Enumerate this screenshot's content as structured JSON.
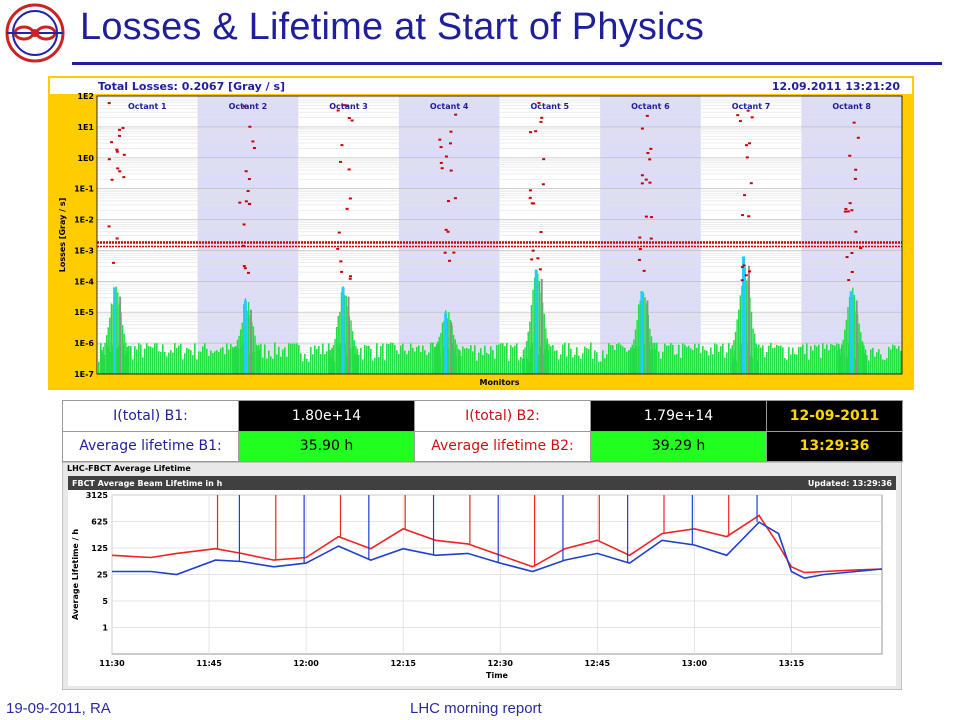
{
  "slide": {
    "title": "Losses & Lifetime at Start of Physics",
    "footer_left": "19-09-2011, RA",
    "footer_center": "LHC morning report"
  },
  "colors": {
    "title_blue": "#1f1f9c",
    "frame_yellow": "#ffcc00",
    "loss_marker": "#cc0000",
    "loss_bar": "#22dd44",
    "loss_cyan": "#22ccff",
    "loss_gray": "#909090",
    "beam1": "#1f3fcc",
    "beam2": "#ee2222",
    "value_green": "#20ff20"
  },
  "icons": {
    "logo": "lhc-ring-logo-icon"
  },
  "beam_table": {
    "row1": {
      "label_b1": "I(total) B1:",
      "value_b1": "1.80e+14",
      "label_b2": "I(total) B2:",
      "value_b2": "1.79e+14",
      "date": "12-09-2011"
    },
    "row2": {
      "label_b1": "Average lifetime B1:",
      "value_b1": "35.90 h",
      "label_b2": "Average lifetime B2:",
      "value_b2": "39.29 h",
      "time": "13:29:36"
    }
  },
  "chart_data": [
    {
      "type": "bar",
      "title": "Total Losses: 0.2067 [Gray / s]",
      "timestamp": "12.09.2011 13:21:20",
      "xlabel": "Monitors",
      "ylabel": "Losses [Gray / s]",
      "yscale": "log",
      "ylim": [
        1e-07,
        100
      ],
      "yticks": [
        "1E-7",
        "1E-6",
        "1E-5",
        "1E-4",
        "1E-3",
        "1E-2",
        "1E-1",
        "1E0",
        "1E1",
        "1E2"
      ],
      "categories": [
        "Octant 1",
        "Octant 2",
        "Octant 3",
        "Octant 4",
        "Octant 5",
        "Octant 6",
        "Octant 7",
        "Octant 8"
      ],
      "threshold_level": 0.0018,
      "peak_losses": [
        8e-05,
        3e-05,
        8e-05,
        1.2e-05,
        0.0003,
        6e-05,
        0.0008,
        6e-05
      ],
      "background_level": 5e-07,
      "grid": true
    },
    {
      "type": "line",
      "panel_label": "LHC-FBCT Average Lifetime",
      "title": "FBCT Average Beam Lifetime in h",
      "updated": "Updated: 13:29:36",
      "xlabel": "Time",
      "ylabel": "Average Lifetime / h",
      "yscale": "log",
      "ylim": [
        0.2,
        3125
      ],
      "yticks": [
        "1",
        "5",
        "25",
        "125",
        "625",
        "3125"
      ],
      "xlim": [
        "11:30",
        "13:29"
      ],
      "xticks": [
        "11:30",
        "11:45",
        "12:00",
        "12:15",
        "12:30",
        "12:45",
        "13:00",
        "13:15"
      ],
      "grid": true,
      "series": [
        {
          "name": "B1",
          "color": "#1f3fcc",
          "x": [
            "11:30",
            "11:36",
            "11:40",
            "11:46",
            "11:50",
            "11:55",
            "12:00",
            "12:05",
            "12:10",
            "12:15",
            "12:20",
            "12:25",
            "12:30",
            "12:35",
            "12:40",
            "12:45",
            "12:50",
            "12:55",
            "13:00",
            "13:05",
            "13:10",
            "13:13",
            "13:15",
            "13:17",
            "13:20",
            "13:25",
            "13:29"
          ],
          "values": [
            30,
            30,
            25,
            60,
            55,
            40,
            50,
            140,
            60,
            120,
            80,
            90,
            50,
            30,
            60,
            90,
            50,
            200,
            150,
            80,
            600,
            300,
            30,
            20,
            25,
            30,
            35
          ]
        },
        {
          "name": "B2",
          "color": "#ee2222",
          "x": [
            "11:30",
            "11:36",
            "11:40",
            "11:46",
            "11:50",
            "11:55",
            "12:00",
            "12:05",
            "12:10",
            "12:15",
            "12:20",
            "12:25",
            "12:30",
            "12:35",
            "12:40",
            "12:45",
            "12:50",
            "12:55",
            "13:00",
            "13:05",
            "13:10",
            "13:13",
            "13:15",
            "13:17",
            "13:20",
            "13:25",
            "13:29"
          ],
          "values": [
            80,
            70,
            90,
            120,
            90,
            60,
            70,
            250,
            120,
            400,
            200,
            160,
            80,
            40,
            120,
            200,
            80,
            300,
            400,
            250,
            900,
            150,
            40,
            28,
            30,
            33,
            35
          ]
        }
      ]
    }
  ]
}
